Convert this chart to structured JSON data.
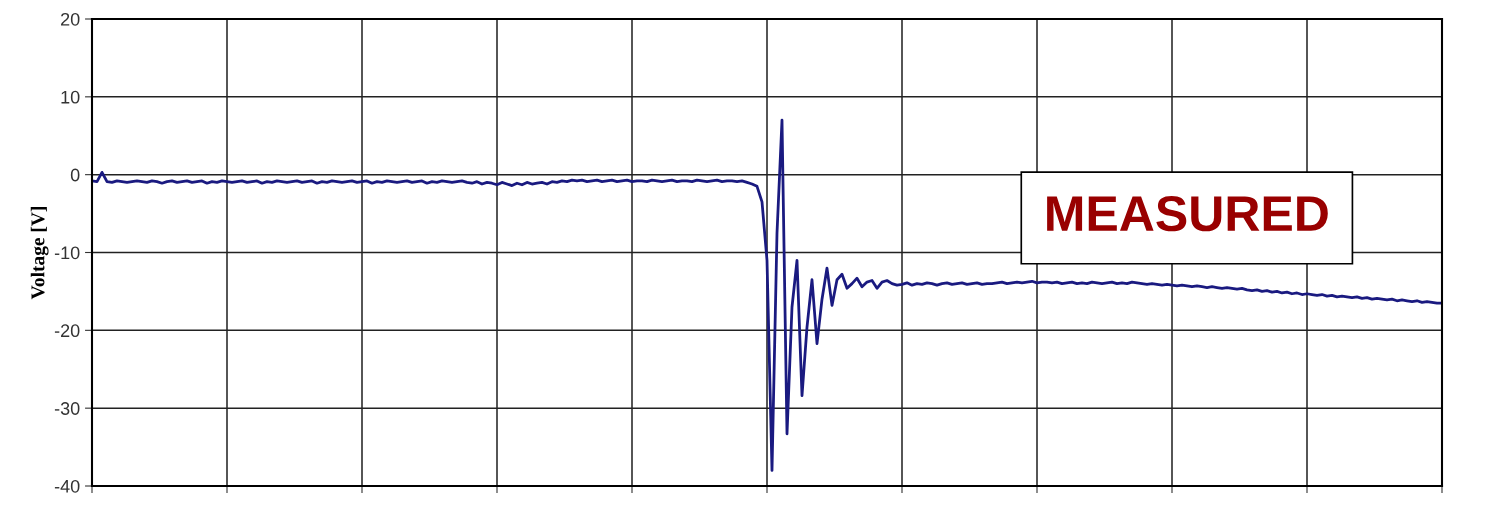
{
  "chart_data": {
    "type": "line",
    "ylabel": "Voltage [V]",
    "annotations": [
      "MEASURED"
    ],
    "categories": [
      null,
      null,
      null,
      null,
      null,
      null,
      null,
      null,
      null,
      null,
      null,
      null,
      null,
      null,
      null,
      null,
      null,
      null,
      null,
      null,
      null,
      null,
      null,
      null,
      null,
      null,
      null,
      null,
      null,
      null,
      null,
      null,
      null,
      null,
      null,
      null,
      null,
      null,
      null,
      null,
      null,
      null,
      null,
      null,
      null,
      null,
      null,
      null,
      null,
      null,
      null,
      null,
      null,
      null,
      null,
      null,
      null,
      null,
      null,
      null,
      null,
      null,
      null,
      null,
      null,
      null,
      null,
      null,
      null,
      null,
      null,
      null,
      null,
      null,
      null,
      null,
      null,
      null,
      null,
      null,
      null,
      null,
      null,
      null,
      null,
      null,
      null,
      null,
      null,
      null,
      null,
      null,
      null,
      null,
      null,
      null,
      null,
      null,
      null,
      null,
      null,
      null,
      null,
      null,
      null,
      null,
      null,
      null,
      null,
      null,
      null,
      null,
      null,
      null,
      null,
      null,
      null,
      null,
      null,
      null,
      null,
      null,
      null,
      null,
      null,
      null,
      null,
      null,
      null,
      null,
      null,
      null,
      null,
      null,
      null,
      null,
      null,
      null,
      null,
      null,
      null,
      null,
      null,
      null,
      null,
      null,
      null,
      null,
      null,
      null,
      null,
      null,
      null,
      null,
      null,
      null,
      null,
      null,
      null,
      null,
      null,
      null,
      null,
      null,
      null,
      null,
      null,
      null,
      null,
      null,
      null,
      null,
      null,
      null,
      null,
      null,
      null,
      null,
      null,
      null,
      null,
      null,
      null,
      null,
      null,
      null,
      null,
      null,
      null,
      null,
      null,
      null,
      null,
      null,
      null,
      null,
      null,
      null,
      null,
      null,
      null,
      null,
      null,
      null,
      null,
      null,
      null,
      null,
      null,
      null,
      null,
      null,
      null,
      null,
      null,
      null,
      null,
      null,
      null,
      null,
      null,
      null,
      null,
      null,
      null,
      null,
      null,
      null,
      null,
      null,
      null,
      null,
      null,
      null,
      null,
      null,
      null,
      null,
      null,
      null,
      null,
      null,
      null,
      null,
      null,
      null,
      null,
      null,
      null,
      null,
      null,
      null,
      null,
      null,
      null,
      null,
      null,
      null,
      null,
      null,
      null,
      null,
      null,
      null,
      null,
      null,
      null,
      null,
      null,
      null,
      null
    ],
    "ylim": [
      -40,
      20
    ],
    "yticks": [
      -40,
      -30,
      -20,
      -10,
      0,
      10,
      20
    ],
    "grid": true,
    "tick_labels": "y",
    "marker": "none",
    "line_style": "solid",
    "series": [
      {
        "color": "#1a1a80",
        "values": [
          -0.8,
          -0.9,
          0.3,
          -0.9,
          -1,
          -0.8,
          -0.9,
          -1,
          -0.9,
          -0.8,
          -0.9,
          -1,
          -0.8,
          -0.9,
          -1.1,
          -0.9,
          -0.8,
          -1,
          -0.9,
          -0.8,
          -1,
          -0.9,
          -0.8,
          -1.1,
          -0.9,
          -1,
          -0.8,
          -0.9,
          -1,
          -0.9,
          -0.8,
          -1,
          -0.9,
          -0.8,
          -1.1,
          -0.9,
          -1,
          -0.8,
          -0.9,
          -1,
          -0.9,
          -0.8,
          -1,
          -0.9,
          -0.8,
          -1.1,
          -0.9,
          -1,
          -0.8,
          -0.9,
          -1,
          -0.9,
          -0.8,
          -1,
          -0.9,
          -0.8,
          -1.1,
          -0.9,
          -1,
          -0.8,
          -0.9,
          -1,
          -0.9,
          -0.8,
          -1,
          -0.9,
          -0.8,
          -1.1,
          -0.9,
          -1,
          -0.8,
          -0.9,
          -1,
          -0.9,
          -0.8,
          -1,
          -1.1,
          -0.9,
          -1.2,
          -1,
          -1.1,
          -1.3,
          -1,
          -1.2,
          -1.4,
          -1.1,
          -1.3,
          -1,
          -1.2,
          -1.1,
          -1,
          -1.2,
          -0.9,
          -1,
          -0.8,
          -0.9,
          -0.7,
          -0.8,
          -0.7,
          -0.9,
          -0.8,
          -0.7,
          -0.9,
          -0.8,
          -0.7,
          -0.9,
          -0.8,
          -0.7,
          -0.9,
          -0.8,
          -0.8,
          -0.9,
          -0.7,
          -0.8,
          -0.9,
          -0.8,
          -0.7,
          -0.9,
          -0.8,
          -0.8,
          -0.9,
          -0.7,
          -0.8,
          -0.9,
          -0.8,
          -0.7,
          -0.9,
          -0.8,
          -0.8,
          -0.9,
          -0.8,
          -1.0,
          -1.2,
          -1.5,
          -3.5,
          -11,
          -38,
          -7.5,
          7,
          -33.3,
          -17,
          -11,
          -28.4,
          -19.6,
          -13.5,
          -21.7,
          -16,
          -12,
          -16.8,
          -13.5,
          -12.8,
          -14.6,
          -14,
          -13.3,
          -14.4,
          -13.8,
          -13.6,
          -14.6,
          -13.8,
          -13.6,
          -14,
          -14.2,
          -14.1,
          -13.9,
          -14.2,
          -14,
          -14.1,
          -13.9,
          -14,
          -14.2,
          -14,
          -13.9,
          -14.1,
          -14,
          -13.9,
          -14.1,
          -14,
          -13.9,
          -14.1,
          -14,
          -14,
          -13.9,
          -13.8,
          -14,
          -13.9,
          -13.8,
          -13.9,
          -13.8,
          -13.7,
          -13.9,
          -13.8,
          -13.8,
          -13.9,
          -13.8,
          -14,
          -13.9,
          -13.8,
          -14,
          -13.9,
          -14,
          -13.8,
          -13.9,
          -14,
          -13.9,
          -13.8,
          -14,
          -13.9,
          -14,
          -13.8,
          -13.9,
          -14,
          -14.1,
          -14,
          -14.1,
          -14.2,
          -14.1,
          -14.2,
          -14.3,
          -14.2,
          -14.3,
          -14.4,
          -14.3,
          -14.4,
          -14.5,
          -14.4,
          -14.5,
          -14.6,
          -14.5,
          -14.6,
          -14.7,
          -14.6,
          -14.8,
          -14.9,
          -14.8,
          -15,
          -14.9,
          -15.1,
          -15,
          -15.2,
          -15.1,
          -15.3,
          -15.2,
          -15.4,
          -15.3,
          -15.4,
          -15.5,
          -15.4,
          -15.6,
          -15.5,
          -15.7,
          -15.6,
          -15.7,
          -15.8,
          -15.7,
          -15.9,
          -15.8,
          -16,
          -15.9,
          -16,
          -16.1,
          -16,
          -16.2,
          -16.1,
          -16.2,
          -16.3,
          -16.2,
          -16.4,
          -16.3,
          -16.4,
          -16.5,
          -16.5
        ]
      }
    ]
  }
}
